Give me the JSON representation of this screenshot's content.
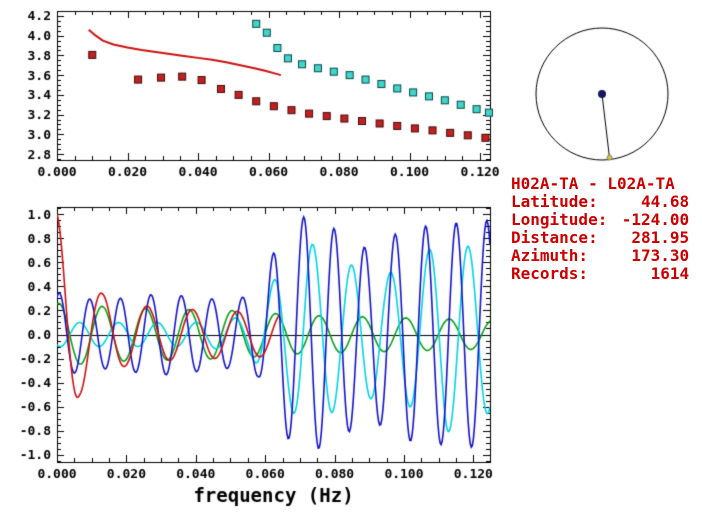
{
  "figure": {
    "background": "#ffffff"
  },
  "info_panel": {
    "title": "H02A-TA - L02A-TA",
    "text_color": "#cc0000",
    "rows": [
      {
        "label": "Latitude:",
        "value": "44.68"
      },
      {
        "label": "Longitude:",
        "value": "-124.00"
      },
      {
        "label": "Distance:",
        "value": "281.95"
      },
      {
        "label": "Azimuth:",
        "value": "173.30"
      },
      {
        "label": "Records:",
        "value": "1614"
      }
    ]
  },
  "chart_data": [
    {
      "id": "dispersion",
      "type": "scatter",
      "title": "",
      "xlabel": "",
      "ylabel": "",
      "xlim": [
        0,
        0.1228
      ],
      "ylim": [
        2.74,
        4.25
      ],
      "grid": false,
      "legend": "none",
      "x_ticks": [
        0,
        0.02,
        0.04,
        0.06,
        0.08,
        0.1,
        0.12
      ],
      "x_tick_labels": [
        "0.000",
        "0.020",
        "0.040",
        "0.060",
        "0.080",
        "0.100",
        "0.120"
      ],
      "x_minor_step": 0.005,
      "y_ticks": [
        2.8,
        3.0,
        3.2,
        3.4,
        3.6,
        3.8,
        4.0,
        4.2
      ],
      "y_tick_labels": [
        "2.8",
        "3.0",
        "3.2",
        "3.4",
        "3.6",
        "3.8",
        "4.0",
        "4.2"
      ],
      "y_minor_step": 0.05,
      "series": [
        {
          "name": "reference-curve",
          "style": "line",
          "color": "#cc1111",
          "points": [
            [
              0.009,
              4.06
            ],
            [
              0.011,
              4.0
            ],
            [
              0.013,
              3.95
            ],
            [
              0.016,
              3.91
            ],
            [
              0.02,
              3.88
            ],
            [
              0.024,
              3.855
            ],
            [
              0.028,
              3.835
            ],
            [
              0.032,
              3.815
            ],
            [
              0.036,
              3.795
            ],
            [
              0.04,
              3.775
            ],
            [
              0.044,
              3.755
            ],
            [
              0.048,
              3.73
            ],
            [
              0.052,
              3.7
            ],
            [
              0.056,
              3.67
            ],
            [
              0.059,
              3.645
            ],
            [
              0.062,
              3.615
            ],
            [
              0.0635,
              3.6
            ]
          ]
        },
        {
          "name": "measured-dispersion-squares",
          "style": "square",
          "color": "#c42020",
          "edge_color": "#3a0d0d",
          "points": [
            [
              0.01,
              3.805
            ],
            [
              0.023,
              3.555
            ],
            [
              0.0295,
              3.575
            ],
            [
              0.0355,
              3.585
            ],
            [
              0.041,
              3.55
            ],
            [
              0.0465,
              3.46
            ],
            [
              0.0515,
              3.4
            ],
            [
              0.0565,
              3.335
            ],
            [
              0.0615,
              3.285
            ],
            [
              0.0665,
              3.245
            ],
            [
              0.0715,
              3.21
            ],
            [
              0.0765,
              3.185
            ],
            [
              0.0815,
              3.16
            ],
            [
              0.0865,
              3.135
            ],
            [
              0.0915,
              3.11
            ],
            [
              0.0965,
              3.085
            ],
            [
              0.1015,
              3.06
            ],
            [
              0.1065,
              3.04
            ],
            [
              0.1115,
              3.015
            ],
            [
              0.1165,
              2.99
            ],
            [
              0.1215,
              2.965
            ]
          ]
        },
        {
          "name": "alternate-dispersion-squares",
          "style": "square",
          "color": "#3fd6cc",
          "edge_color": "#0b4444",
          "points": [
            [
              0.0565,
              4.12
            ],
            [
              0.0595,
              4.03
            ],
            [
              0.0625,
              3.875
            ],
            [
              0.0655,
              3.77
            ],
            [
              0.0695,
              3.71
            ],
            [
              0.074,
              3.67
            ],
            [
              0.0785,
              3.635
            ],
            [
              0.083,
              3.6
            ],
            [
              0.0875,
              3.555
            ],
            [
              0.092,
              3.51
            ],
            [
              0.0965,
              3.465
            ],
            [
              0.101,
              3.425
            ],
            [
              0.1055,
              3.385
            ],
            [
              0.11,
              3.345
            ],
            [
              0.1145,
              3.3
            ],
            [
              0.119,
              3.255
            ],
            [
              0.1225,
              3.22
            ]
          ]
        }
      ]
    },
    {
      "id": "waveforms",
      "type": "line",
      "title": "",
      "xlabel": "frequency (Hz)",
      "ylabel": "",
      "xlim": [
        0,
        0.1248
      ],
      "ylim": [
        -1.06,
        1.06
      ],
      "grid": false,
      "legend": "none",
      "zero_line": true,
      "x_ticks": [
        0,
        0.02,
        0.04,
        0.06,
        0.08,
        0.1,
        0.12
      ],
      "x_tick_labels": [
        "0.000",
        "0.020",
        "0.040",
        "0.060",
        "0.080",
        "0.100",
        "0.120"
      ],
      "x_minor_step": 0.005,
      "y_ticks": [
        -1.0,
        -0.8,
        -0.6,
        -0.4,
        -0.2,
        0.0,
        0.2,
        0.4,
        0.6,
        0.8,
        1.0
      ],
      "y_tick_labels": [
        "-1.0",
        "-0.8",
        "-0.6",
        "-0.4",
        "-0.2",
        "0.0",
        "0.2",
        "0.4",
        "0.6",
        "0.8",
        "1.0"
      ],
      "y_minor_step": 0.05,
      "series": [
        {
          "name": "waveform-green",
          "color": "#0aa014",
          "waveform": {
            "period": 0.0125,
            "phase": 1.3,
            "xend": 0.1248,
            "envelope": [
              [
                0,
                0.26
              ],
              [
                0.02,
                0.22
              ],
              [
                0.05,
                0.2
              ],
              [
                0.07,
                0.16
              ],
              [
                0.1248,
                0.12
              ]
            ]
          }
        },
        {
          "name": "waveform-cyan",
          "color": "#00d4e6",
          "waveform": {
            "period": 0.0112,
            "phase": 4.2,
            "xend": 0.1248,
            "envelope": [
              [
                0,
                0.1
              ],
              [
                0.04,
                0.1
              ],
              [
                0.055,
                0.15
              ],
              [
                0.065,
                0.55
              ],
              [
                0.072,
                0.78
              ],
              [
                0.082,
                0.6
              ],
              [
                0.095,
                0.5
              ],
              [
                0.105,
                0.65
              ],
              [
                0.112,
                0.82
              ],
              [
                0.1248,
                0.65
              ]
            ]
          }
        },
        {
          "name": "waveform-blue",
          "color": "#1414cc",
          "waveform": {
            "period": 0.0088,
            "phase": 1.1,
            "xend": 0.1248,
            "envelope": [
              [
                0,
                0.35
              ],
              [
                0.012,
                0.28
              ],
              [
                0.03,
                0.34
              ],
              [
                0.05,
                0.28
              ],
              [
                0.058,
                0.35
              ],
              [
                0.064,
                0.8
              ],
              [
                0.072,
                1.0
              ],
              [
                0.082,
                0.85
              ],
              [
                0.09,
                0.7
              ],
              [
                0.1,
                0.88
              ],
              [
                0.112,
                0.92
              ],
              [
                0.1248,
                0.95
              ]
            ]
          }
        },
        {
          "name": "waveform-red",
          "color": "#cc1111",
          "waveform": {
            "period": 0.013,
            "phase": 1.5708,
            "xend": 0.064,
            "envelope": [
              [
                0,
                1.0
              ],
              [
                0.0065,
                0.5
              ],
              [
                0.013,
                0.34
              ],
              [
                0.02,
                0.26
              ],
              [
                0.03,
                0.22
              ],
              [
                0.045,
                0.2
              ],
              [
                0.064,
                0.18
              ]
            ]
          }
        }
      ]
    },
    {
      "id": "azimuth",
      "type": "other",
      "description": "station-pair azimuth circle",
      "azimuth_deg": 173.3,
      "circle_color": "#000000",
      "center_dot_color": "#16165a",
      "endpoint_dot_color": "#d4c83c"
    }
  ]
}
